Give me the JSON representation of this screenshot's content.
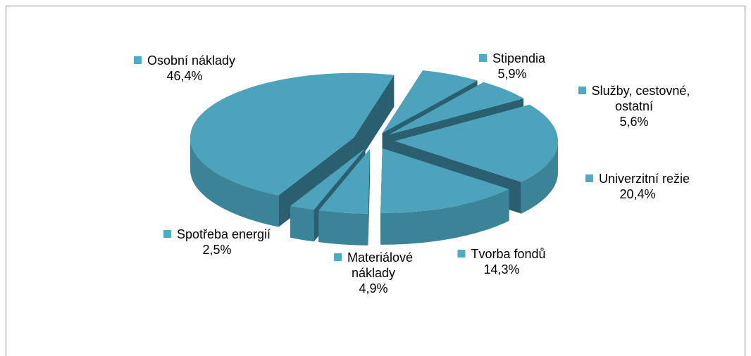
{
  "chart_data": {
    "type": "pie",
    "categories": [
      "Osobní náklady",
      "Stipendia",
      "Služby, cestovné, ostatní",
      "Univerzitní režie",
      "Tvorba fondů",
      "Materiálové náklady",
      "Spotřeba energií"
    ],
    "values": [
      46.4,
      5.9,
      5.6,
      20.4,
      14.3,
      4.9,
      2.5
    ],
    "value_labels": [
      "46,4%",
      "5,9%",
      "5,6%",
      "20,4%",
      "14,3%",
      "4,9%",
      "2,5%"
    ],
    "color": "#4bacc6"
  }
}
